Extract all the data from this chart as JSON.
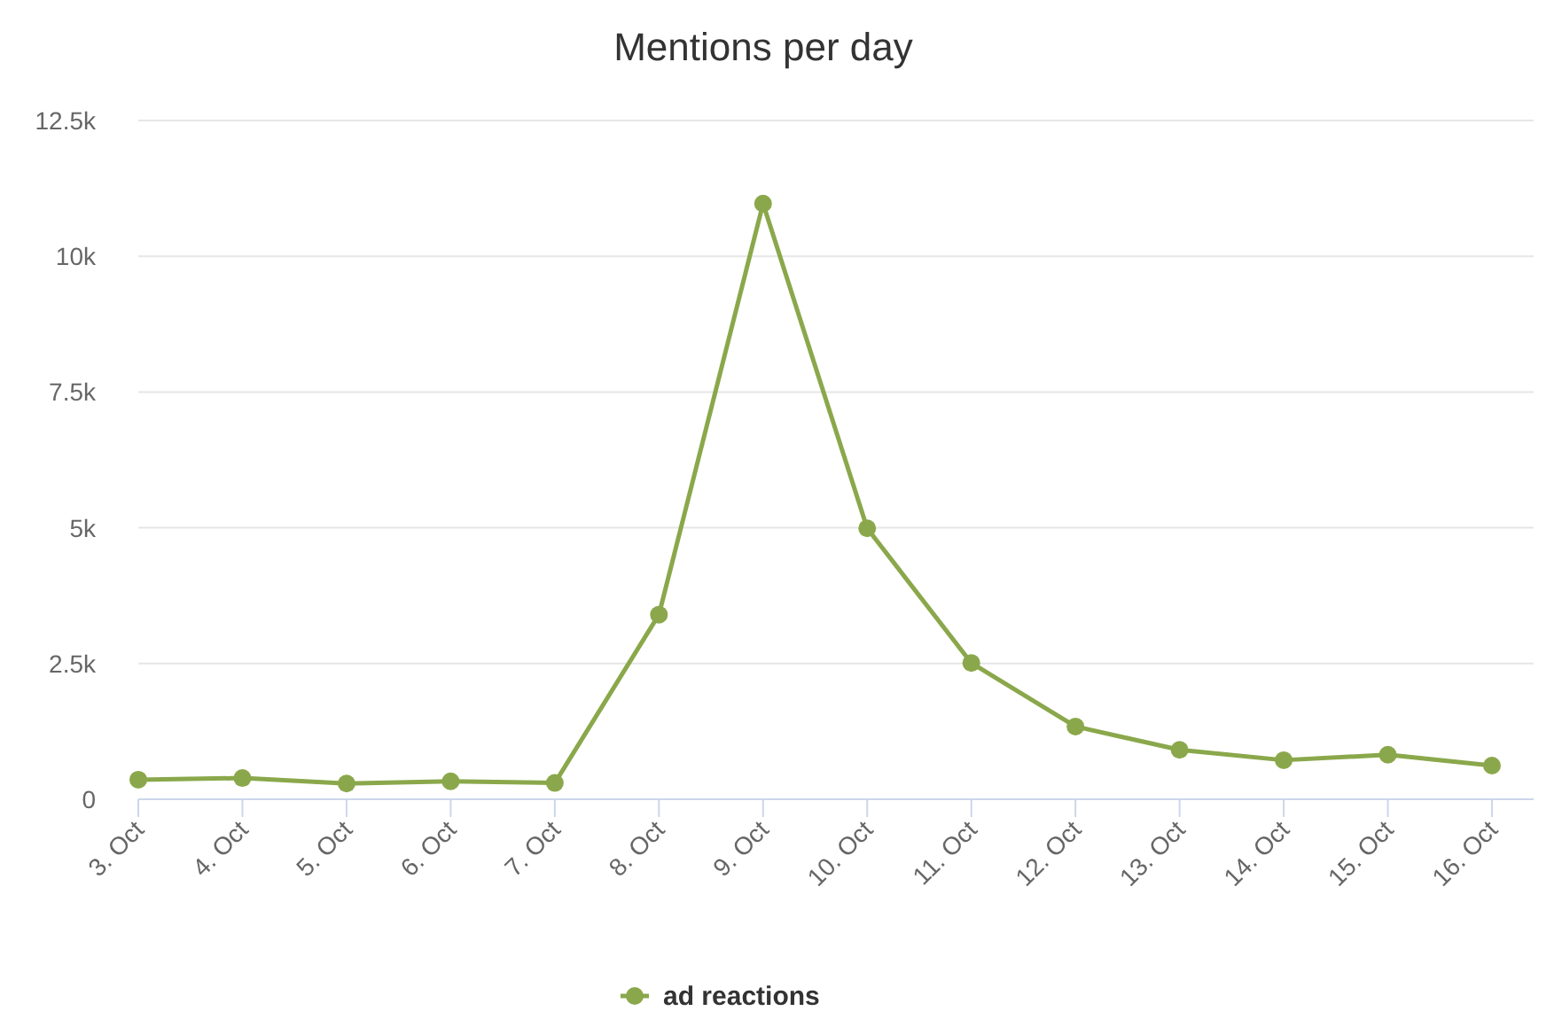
{
  "chart_data": {
    "type": "line",
    "title": "Mentions per day",
    "categories": [
      "3. Oct",
      "4. Oct",
      "5. Oct",
      "6. Oct",
      "7. Oct",
      "8. Oct",
      "9. Oct",
      "10. Oct",
      "11. Oct",
      "12. Oct",
      "13. Oct",
      "14. Oct",
      "15. Oct",
      "16. Oct"
    ],
    "series": [
      {
        "name": "ad reactions",
        "color": "#8aa84b",
        "values": [
          360,
          390,
          290,
          330,
          300,
          3400,
          10970,
          4990,
          2510,
          1340,
          910,
          720,
          820,
          620
        ]
      }
    ],
    "ylim": [
      0,
      12500
    ],
    "yticks": [
      0,
      {
        "value": 2500,
        "label": "2.5k"
      },
      {
        "value": 5000,
        "label": "5k"
      },
      {
        "value": 7500,
        "label": "7.5k"
      },
      {
        "value": 10000,
        "label": "10k"
      },
      {
        "value": 12500,
        "label": "12.5k"
      }
    ],
    "grid": "y",
    "legend": "bottom",
    "marker": "circle",
    "line_style": "solid"
  }
}
